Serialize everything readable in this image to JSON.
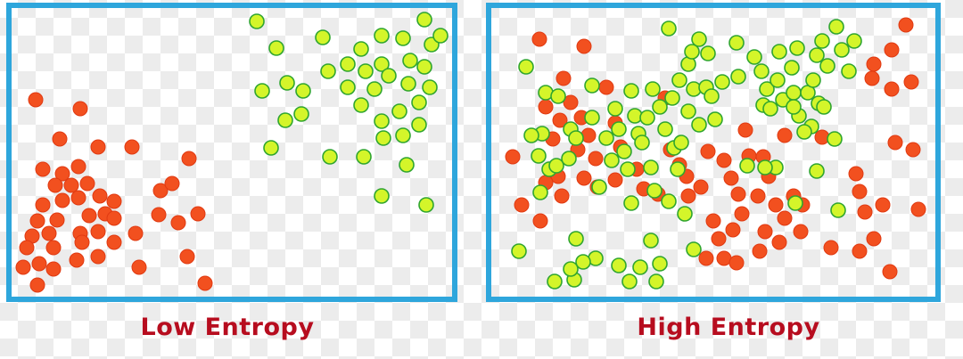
{
  "colors": {
    "frame": "#2ea6dc",
    "red_fill": "#f2501f",
    "red_stroke": "#e03a12",
    "green_fill": "#d4f52a",
    "green_stroke": "#2fa52f",
    "caption": "#b70d1f"
  },
  "panels": [
    {
      "caption": "Low Entropy",
      "red": [
        [
          40,
          112
        ],
        [
          90,
          122
        ],
        [
          67,
          156
        ],
        [
          110,
          165
        ],
        [
          148,
          165
        ],
        [
          48,
          190
        ],
        [
          70,
          195
        ],
        [
          88,
          187
        ],
        [
          62,
          208
        ],
        [
          80,
          208
        ],
        [
          98,
          206
        ],
        [
          180,
          214
        ],
        [
          212,
          178
        ],
        [
          193,
          206
        ],
        [
          48,
          230
        ],
        [
          70,
          225
        ],
        [
          88,
          222
        ],
        [
          112,
          220
        ],
        [
          128,
          226
        ],
        [
          42,
          248
        ],
        [
          64,
          247
        ],
        [
          100,
          242
        ],
        [
          118,
          240
        ],
        [
          128,
          245
        ],
        [
          178,
          241
        ],
        [
          200,
          250
        ],
        [
          222,
          240
        ],
        [
          36,
          265
        ],
        [
          55,
          262
        ],
        [
          90,
          262
        ],
        [
          110,
          260
        ],
        [
          128,
          272
        ],
        [
          152,
          262
        ],
        [
          30,
          278
        ],
        [
          60,
          278
        ],
        [
          92,
          272
        ],
        [
          110,
          288
        ],
        [
          26,
          300
        ],
        [
          44,
          296
        ],
        [
          60,
          302
        ],
        [
          86,
          292
        ],
        [
          210,
          288
        ],
        [
          156,
          300
        ],
        [
          42,
          320
        ],
        [
          230,
          318
        ]
      ],
      "green": [
        [
          288,
          24
        ],
        [
          310,
          54
        ],
        [
          362,
          42
        ],
        [
          294,
          102
        ],
        [
          322,
          93
        ],
        [
          340,
          102
        ],
        [
          304,
          166
        ],
        [
          320,
          135
        ],
        [
          338,
          128
        ],
        [
          368,
          80
        ],
        [
          370,
          176
        ],
        [
          390,
          72
        ],
        [
          390,
          98
        ],
        [
          405,
          55
        ],
        [
          405,
          118
        ],
        [
          410,
          80
        ],
        [
          408,
          176
        ],
        [
          420,
          100
        ],
        [
          428,
          40
        ],
        [
          428,
          72
        ],
        [
          436,
          85
        ],
        [
          428,
          136
        ],
        [
          430,
          155
        ],
        [
          448,
          125
        ],
        [
          452,
          152
        ],
        [
          456,
          185
        ],
        [
          452,
          43
        ],
        [
          460,
          68
        ],
        [
          458,
          94
        ],
        [
          470,
          115
        ],
        [
          476,
          22
        ],
        [
          484,
          50
        ],
        [
          494,
          40
        ],
        [
          476,
          75
        ],
        [
          482,
          98
        ],
        [
          470,
          140
        ],
        [
          428,
          220
        ],
        [
          478,
          230
        ]
      ]
    },
    {
      "caption": "High Entropy",
      "red": [
        [
          605,
          44
        ],
        [
          655,
          52
        ],
        [
          575,
          176
        ],
        [
          585,
          230
        ],
        [
          606,
          248
        ],
        [
          612,
          120
        ],
        [
          620,
          156
        ],
        [
          628,
          135
        ],
        [
          632,
          88
        ],
        [
          626,
          198
        ],
        [
          640,
          115
        ],
        [
          648,
          168
        ],
        [
          652,
          132
        ],
        [
          655,
          200
        ],
        [
          630,
          220
        ],
        [
          612,
          205
        ],
        [
          660,
          152
        ],
        [
          668,
          178
        ],
        [
          670,
          210
        ],
        [
          680,
          98
        ],
        [
          690,
          138
        ],
        [
          690,
          202
        ],
        [
          696,
          165
        ],
        [
          714,
          190
        ],
        [
          722,
          212
        ],
        [
          738,
          218
        ],
        [
          746,
          110
        ],
        [
          752,
          168
        ],
        [
          762,
          185
        ],
        [
          770,
          198
        ],
        [
          772,
          220
        ],
        [
          786,
          210
        ],
        [
          794,
          170
        ],
        [
          812,
          180
        ],
        [
          820,
          200
        ],
        [
          836,
          146
        ],
        [
          840,
          175
        ],
        [
          828,
          218
        ],
        [
          856,
          176
        ],
        [
          862,
          198
        ],
        [
          870,
          230
        ],
        [
          850,
          220
        ],
        [
          832,
          240
        ],
        [
          822,
          258
        ],
        [
          806,
          268
        ],
        [
          800,
          248
        ],
        [
          792,
          290
        ],
        [
          812,
          290
        ],
        [
          826,
          295
        ],
        [
          852,
          282
        ],
        [
          858,
          260
        ],
        [
          874,
          272
        ],
        [
          880,
          245
        ],
        [
          890,
          220
        ],
        [
          900,
          230
        ],
        [
          898,
          260
        ],
        [
          880,
          152
        ],
        [
          960,
          195
        ],
        [
          970,
          238
        ],
        [
          964,
          215
        ],
        [
          990,
          230
        ],
        [
          1004,
          160
        ],
        [
          1024,
          168
        ],
        [
          1030,
          235
        ],
        [
          980,
          72
        ],
        [
          1000,
          56
        ],
        [
          1016,
          28
        ],
        [
          978,
          88
        ],
        [
          1000,
          100
        ],
        [
          1022,
          92
        ],
        [
          932,
          278
        ],
        [
          964,
          282
        ],
        [
          980,
          268
        ],
        [
          998,
          305
        ],
        [
          922,
          154
        ]
      ],
      "green": [
        [
          750,
          32
        ],
        [
          590,
          75
        ],
        [
          612,
          104
        ],
        [
          626,
          108
        ],
        [
          608,
          150
        ],
        [
          596,
          152
        ],
        [
          604,
          175
        ],
        [
          616,
          190
        ],
        [
          606,
          216
        ],
        [
          624,
          186
        ],
        [
          638,
          178
        ],
        [
          640,
          145
        ],
        [
          646,
          155
        ],
        [
          664,
          132
        ],
        [
          664,
          96
        ],
        [
          672,
          210
        ],
        [
          680,
          155
        ],
        [
          690,
          122
        ],
        [
          694,
          145
        ],
        [
          700,
          170
        ],
        [
          704,
          190
        ],
        [
          708,
          102
        ],
        [
          712,
          130
        ],
        [
          716,
          150
        ],
        [
          720,
          160
        ],
        [
          726,
          132
        ],
        [
          730,
          188
        ],
        [
          732,
          100
        ],
        [
          740,
          120
        ],
        [
          746,
          145
        ],
        [
          756,
          166
        ],
        [
          764,
          160
        ],
        [
          760,
          190
        ],
        [
          754,
          110
        ],
        [
          762,
          90
        ],
        [
          772,
          72
        ],
        [
          778,
          100
        ],
        [
          772,
          125
        ],
        [
          784,
          140
        ],
        [
          792,
          98
        ],
        [
          798,
          108
        ],
        [
          802,
          134
        ],
        [
          810,
          92
        ],
        [
          776,
          58
        ],
        [
          784,
          44
        ],
        [
          794,
          60
        ],
        [
          826,
          48
        ],
        [
          828,
          86
        ],
        [
          846,
          64
        ],
        [
          854,
          80
        ],
        [
          856,
          118
        ],
        [
          860,
          100
        ],
        [
          864,
          122
        ],
        [
          872,
          90
        ],
        [
          874,
          58
        ],
        [
          878,
          112
        ],
        [
          888,
          76
        ],
        [
          890,
          104
        ],
        [
          894,
          54
        ],
        [
          896,
          130
        ],
        [
          906,
          104
        ],
        [
          910,
          142
        ],
        [
          912,
          90
        ],
        [
          916,
          62
        ],
        [
          922,
          46
        ],
        [
          918,
          116
        ],
        [
          928,
          74
        ],
        [
          938,
          30
        ],
        [
          944,
          56
        ],
        [
          952,
          80
        ],
        [
          958,
          46
        ],
        [
          890,
          120
        ],
        [
          902,
          148
        ],
        [
          924,
          120
        ],
        [
          936,
          156
        ],
        [
          940,
          236
        ],
        [
          916,
          192
        ],
        [
          870,
          188
        ],
        [
          892,
          228
        ],
        [
          858,
          188
        ],
        [
          838,
          186
        ],
        [
          768,
          240
        ],
        [
          750,
          226
        ],
        [
          734,
          214
        ],
        [
          730,
          270
        ],
        [
          708,
          228
        ],
        [
          686,
          180
        ],
        [
          668,
          290
        ],
        [
          654,
          294
        ],
        [
          646,
          268
        ],
        [
          644,
          314
        ],
        [
          622,
          316
        ],
        [
          640,
          302
        ],
        [
          694,
          298
        ],
        [
          706,
          316
        ],
        [
          718,
          300
        ],
        [
          736,
          316
        ],
        [
          740,
          296
        ],
        [
          778,
          280
        ],
        [
          582,
          282
        ]
      ]
    }
  ]
}
